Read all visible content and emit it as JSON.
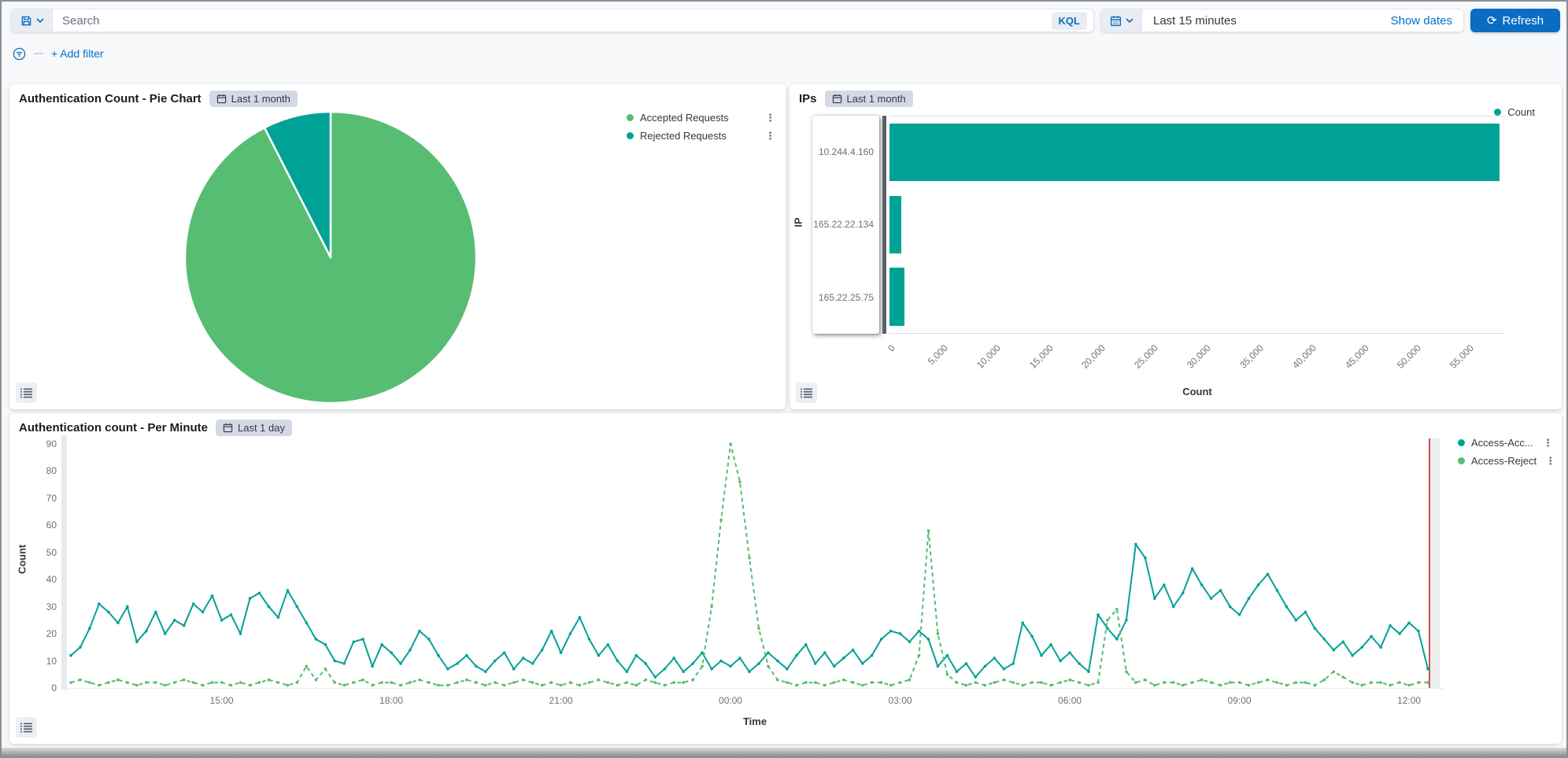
{
  "query_bar": {
    "search_placeholder": "Search",
    "kql_label": "KQL",
    "time_value": "Last 15 minutes",
    "show_dates_label": "Show dates",
    "refresh_label": "Refresh"
  },
  "filter_bar": {
    "add_filter_label": "+ Add filter"
  },
  "icons": [
    "save-icon",
    "chevron-down-icon",
    "calendar-icon",
    "refresh-icon",
    "filter-icon",
    "list-icon",
    "ellipsis-menu-icon"
  ],
  "colors": {
    "accent_blue": "#0a6dc2",
    "teal": "#00a296",
    "green": "#57bd72",
    "annotation_red": "#ce5454",
    "badge_bg": "#d3dae6"
  },
  "panels": {
    "pie": {
      "title": "Authentication Count - Pie Chart",
      "badge": "Last 1 month",
      "legend": [
        {
          "label": "Accepted Requests",
          "color": "#57bd72"
        },
        {
          "label": "Rejected Requests",
          "color": "#00a296"
        }
      ]
    },
    "ips": {
      "title": "IPs",
      "badge": "Last 1 month",
      "legend": [
        {
          "label": "Count",
          "color": "#00a296"
        }
      ],
      "xlabel": "Count",
      "ylabel": "IP"
    },
    "line": {
      "title": "Authentication count - Per Minute",
      "badge": "Last 1 day",
      "legend": [
        {
          "label": "Access-Acc...",
          "color": "#00a296"
        },
        {
          "label": "Access-Reject",
          "color": "#57bd72"
        }
      ],
      "xlabel": "Time",
      "ylabel": "Count"
    }
  },
  "chart_data": [
    {
      "type": "pie",
      "title": "Authentication Count - Pie Chart",
      "slices": [
        {
          "label": "Accepted Requests",
          "value": 92.5,
          "color": "#57bd72"
        },
        {
          "label": "Rejected Requests",
          "value": 7.5,
          "color": "#00a296"
        }
      ],
      "unit": "percent_estimate"
    },
    {
      "type": "bar",
      "orientation": "horizontal",
      "title": "IPs",
      "categories": [
        "10.244.4.160",
        "165.22.22.134",
        "165.22.25.75"
      ],
      "values": [
        58000,
        1100,
        1400
      ],
      "color": "#00a296",
      "xlabel": "Count",
      "ylabel": "IP",
      "xticks": [
        0,
        5000,
        10000,
        15000,
        20000,
        25000,
        30000,
        35000,
        40000,
        45000,
        50000,
        55000
      ],
      "xlim": [
        0,
        58500
      ],
      "legend": [
        "Count"
      ]
    },
    {
      "type": "line",
      "title": "Authentication count - Per Minute",
      "xlabel": "Time",
      "ylabel": "Count",
      "ylim": [
        0,
        90
      ],
      "yticks": [
        0,
        10,
        20,
        30,
        40,
        50,
        60,
        70,
        80,
        90
      ],
      "xtick_labels": [
        "15:00",
        "18:00",
        "21:00",
        "00:00",
        "03:00",
        "06:00",
        "09:00",
        "12:00"
      ],
      "xtick_indices": [
        16,
        34,
        52,
        70,
        88,
        106,
        124,
        142
      ],
      "interval_minutes": 10,
      "annotation": {
        "type": "vline",
        "position": "right-edge",
        "color": "#ce5454"
      },
      "series": [
        {
          "name": "Access-Acc...",
          "color": "#00a296",
          "style": "solid",
          "values": [
            12,
            15,
            22,
            31,
            28,
            24,
            30,
            17,
            21,
            28,
            20,
            25,
            23,
            31,
            28,
            34,
            25,
            27,
            20,
            33,
            35,
            30,
            26,
            36,
            30,
            24,
            18,
            16,
            10,
            9,
            17,
            18,
            8,
            16,
            13,
            9,
            14,
            21,
            18,
            12,
            7,
            9,
            12,
            8,
            6,
            10,
            13,
            7,
            11,
            9,
            14,
            21,
            13,
            20,
            26,
            18,
            12,
            16,
            10,
            6,
            12,
            9,
            4,
            7,
            11,
            6,
            9,
            13,
            7,
            10,
            8,
            11,
            6,
            9,
            13,
            10,
            7,
            12,
            16,
            9,
            13,
            8,
            11,
            14,
            9,
            12,
            18,
            21,
            20,
            17,
            21,
            18,
            8,
            12,
            6,
            9,
            4,
            8,
            11,
            7,
            9,
            24,
            19,
            12,
            16,
            10,
            13,
            9,
            6,
            27,
            22,
            18,
            25,
            53,
            48,
            33,
            38,
            30,
            35,
            44,
            38,
            33,
            36,
            30,
            27,
            33,
            38,
            42,
            36,
            30,
            25,
            28,
            22,
            18,
            14,
            17,
            12,
            15,
            19,
            15,
            23,
            20,
            24,
            21,
            7
          ]
        },
        {
          "name": "Access-Reject",
          "color": "#57bd72",
          "style": "dashed",
          "values": [
            2,
            3,
            2,
            1,
            2,
            3,
            2,
            1,
            2,
            2,
            1,
            2,
            3,
            2,
            1,
            2,
            2,
            1,
            2,
            1,
            2,
            3,
            2,
            1,
            2,
            8,
            3,
            7,
            2,
            1,
            2,
            3,
            1,
            2,
            2,
            1,
            2,
            3,
            2,
            1,
            1,
            2,
            3,
            2,
            1,
            2,
            1,
            2,
            3,
            2,
            1,
            2,
            1,
            2,
            1,
            2,
            3,
            2,
            1,
            2,
            1,
            3,
            2,
            1,
            2,
            2,
            3,
            8,
            30,
            62,
            90,
            76,
            48,
            22,
            8,
            3,
            2,
            1,
            2,
            2,
            1,
            2,
            3,
            2,
            1,
            2,
            2,
            1,
            2,
            3,
            12,
            58,
            20,
            5,
            2,
            1,
            2,
            1,
            2,
            3,
            2,
            1,
            2,
            2,
            1,
            2,
            3,
            2,
            1,
            2,
            25,
            29,
            6,
            2,
            3,
            1,
            2,
            2,
            1,
            2,
            3,
            2,
            1,
            2,
            2,
            1,
            2,
            3,
            2,
            1,
            2,
            2,
            1,
            3,
            6,
            4,
            2,
            1,
            2,
            2,
            1,
            2,
            1,
            2,
            2
          ]
        }
      ]
    }
  ]
}
